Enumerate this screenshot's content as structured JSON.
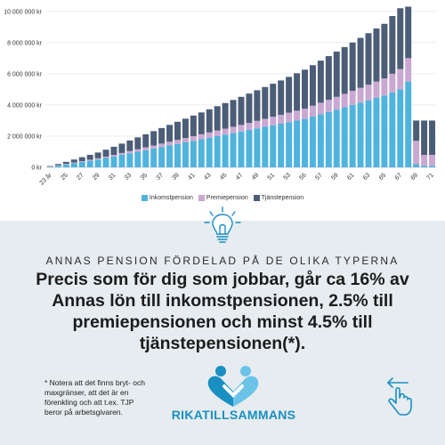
{
  "chart_data": {
    "type": "bar",
    "stacked": true,
    "categories": [
      "23 år",
      "24",
      "25",
      "26",
      "27",
      "28",
      "29",
      "30",
      "31",
      "32",
      "33",
      "34",
      "35",
      "36",
      "37",
      "38",
      "39",
      "40",
      "41",
      "42",
      "43",
      "44",
      "45",
      "46",
      "47",
      "48",
      "49",
      "50",
      "51",
      "52",
      "53",
      "54",
      "55",
      "56",
      "57",
      "58",
      "59",
      "60",
      "61",
      "62",
      "63",
      "64",
      "65",
      "66",
      "67",
      "68",
      "69",
      "70",
      "71"
    ],
    "x_tick_labels": [
      "23 år",
      "25",
      "27",
      "29",
      "31",
      "33",
      "35",
      "37",
      "39",
      "41",
      "43",
      "45",
      "47",
      "49",
      "51",
      "53",
      "55",
      "57",
      "59",
      "61",
      "63",
      "65",
      "67",
      "69",
      "71"
    ],
    "series": [
      {
        "name": "Inkomstpension",
        "color": "#4fb3dd",
        "values": [
          30000,
          100000,
          180000,
          260000,
          340000,
          420000,
          500000,
          600000,
          700000,
          800000,
          900000,
          1000000,
          1100000,
          1200000,
          1300000,
          1400000,
          1500000,
          1600000,
          1700000,
          1800000,
          1900000,
          2000000,
          2100000,
          2200000,
          2300000,
          2400000,
          2500000,
          2600000,
          2700000,
          2800000,
          2900000,
          3000000,
          3100000,
          3250000,
          3400000,
          3550000,
          3700000,
          3850000,
          4000000,
          4150000,
          4300000,
          4450000,
          4600000,
          4800000,
          5000000,
          5500000,
          200000,
          100000,
          100000
        ]
      },
      {
        "name": "Premiepension",
        "color": "#c9a8d1",
        "values": [
          20000,
          30000,
          40000,
          50000,
          60000,
          70000,
          80000,
          90000,
          100000,
          120000,
          140000,
          160000,
          180000,
          200000,
          220000,
          240000,
          260000,
          280000,
          300000,
          320000,
          340000,
          360000,
          380000,
          400000,
          420000,
          450000,
          480000,
          510000,
          540000,
          570000,
          600000,
          630000,
          660000,
          700000,
          740000,
          780000,
          820000,
          860000,
          900000,
          950000,
          1000000,
          1050000,
          1100000,
          1200000,
          1300000,
          1500000,
          1500000,
          700000,
          700000
        ]
      },
      {
        "name": "Tjänstepension",
        "color": "#4c5d77",
        "values": [
          30000,
          80000,
          130000,
          190000,
          250000,
          310000,
          370000,
          440000,
          520000,
          600000,
          680000,
          760000,
          840000,
          920000,
          1000000,
          1080000,
          1160000,
          1240000,
          1320000,
          1400000,
          1480000,
          1560000,
          1640000,
          1720000,
          1800000,
          1880000,
          1960000,
          2040000,
          2120000,
          2200000,
          2300000,
          2400000,
          2500000,
          2600000,
          2700000,
          2800000,
          2900000,
          3000000,
          3100000,
          3200000,
          3300000,
          3400000,
          3500000,
          3700000,
          3900000,
          3300000,
          1300000,
          2200000,
          2200000
        ]
      }
    ],
    "y_ticks": [
      {
        "value": 0,
        "label": "0 kr"
      },
      {
        "value": 2000000,
        "label": "2 000 000 kr"
      },
      {
        "value": 4000000,
        "label": "4 000 000 kr"
      },
      {
        "value": 6000000,
        "label": "6 000 000 kr"
      },
      {
        "value": 8000000,
        "label": "8 000 000 kr"
      },
      {
        "value": 10000000,
        "label": "10 000 000 kr"
      }
    ],
    "ylim": [
      0,
      10500000
    ],
    "grid": true,
    "legend_position": "bottom"
  },
  "subtitle": "ANNAS PENSION FÖRDELAD PÅ DE OLIKA TYPERNA",
  "main_text": "Precis som för dig som jobbar, går ca 16% av Annas lön till inkomstpensionen, 2.5% till premiepensionen och minst 4.5% till tjänstepensionen(*).",
  "footnote": "* Notera att det finns bryt- och maxgränser, att det är en förenkling och att t.ex. TJP beror på arbetsgivaren.",
  "brand": "RIKATILLSAMMANS",
  "colors": {
    "brand": "#1a8fc1",
    "accent_light": "#6cc3e8"
  },
  "icons": {
    "bulb": "lightbulb-icon",
    "logo": "heart-people-logo",
    "swipe": "swipe-left-hand-icon"
  }
}
